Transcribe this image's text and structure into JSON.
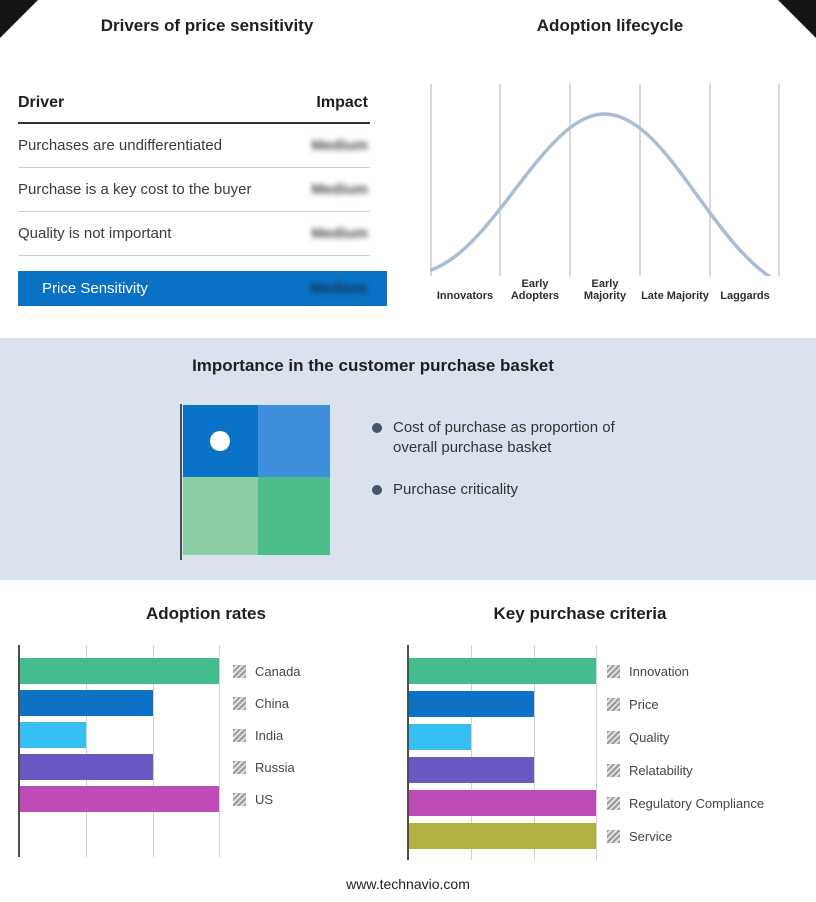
{
  "page": {
    "footer": "www.technavio.com"
  },
  "drivers_table": {
    "title": "Drivers of price sensitivity",
    "columns": {
      "driver": "Driver",
      "impact": "Impact"
    },
    "rows": [
      {
        "driver": "Purchases are undifferentiated",
        "impact": "Medium"
      },
      {
        "driver": "Purchase is a key cost to the buyer",
        "impact": "Medium"
      },
      {
        "driver": "Quality is not important",
        "impact": "Medium"
      }
    ],
    "summary_row": {
      "label": "Price Sensitivity",
      "impact": "Medium"
    },
    "summary_color": "#0a72c5"
  },
  "adoption_lifecycle": {
    "title": "Adoption lifecycle",
    "stages": [
      "Innovators",
      "Early Adopters",
      "Early Majority",
      "Late Majority",
      "Laggards"
    ],
    "curve_color": "#a9bdd6"
  },
  "purchase_basket": {
    "title": "Importance in the customer purchase basket",
    "bullets": [
      "Cost of purchase as proportion of overall purchase basket",
      "Purchase criticality"
    ],
    "quadrant_colors": {
      "top_left": "#0b73c7",
      "top_right": "#3e8edb",
      "bottom_left": "#8ccfa7",
      "bottom_right": "#4dbd8b"
    },
    "background": "#dae3ed"
  },
  "chart_data": [
    {
      "type": "line",
      "title": "Adoption lifecycle",
      "x": [
        "Innovators",
        "Early Adopters",
        "Early Majority",
        "Late Majority",
        "Laggards"
      ],
      "description": "Bell-shaped adoption curve rising from Innovators, peaking at Early Majority, falling through Laggards",
      "grid": "vertical stage dividers",
      "legend_position": "none"
    },
    {
      "type": "bar",
      "title": "Adoption rates",
      "orientation": "horizontal",
      "categories": [
        "Canada",
        "China",
        "India",
        "Russia",
        "US"
      ],
      "values": [
        3,
        2,
        1,
        2,
        3
      ],
      "xmax": 3,
      "xlabel": "",
      "ylabel": "",
      "colors": [
        "#43bd8d",
        "#0b72c6",
        "#36bff1",
        "#6a57c2",
        "#bd4cb8"
      ],
      "legend_position": "right"
    },
    {
      "type": "bar",
      "title": "Key purchase criteria",
      "orientation": "horizontal",
      "categories": [
        "Innovation",
        "Price",
        "Quality",
        "Relatability",
        "Regulatory Compliance",
        "Service"
      ],
      "values": [
        3,
        2,
        1,
        2,
        3,
        3
      ],
      "xmax": 3,
      "xlabel": "",
      "ylabel": "",
      "colors": [
        "#43bd8d",
        "#0b72c6",
        "#36bff1",
        "#6a57c2",
        "#bd4cb8",
        "#b2b23e"
      ],
      "legend_position": "right"
    }
  ]
}
